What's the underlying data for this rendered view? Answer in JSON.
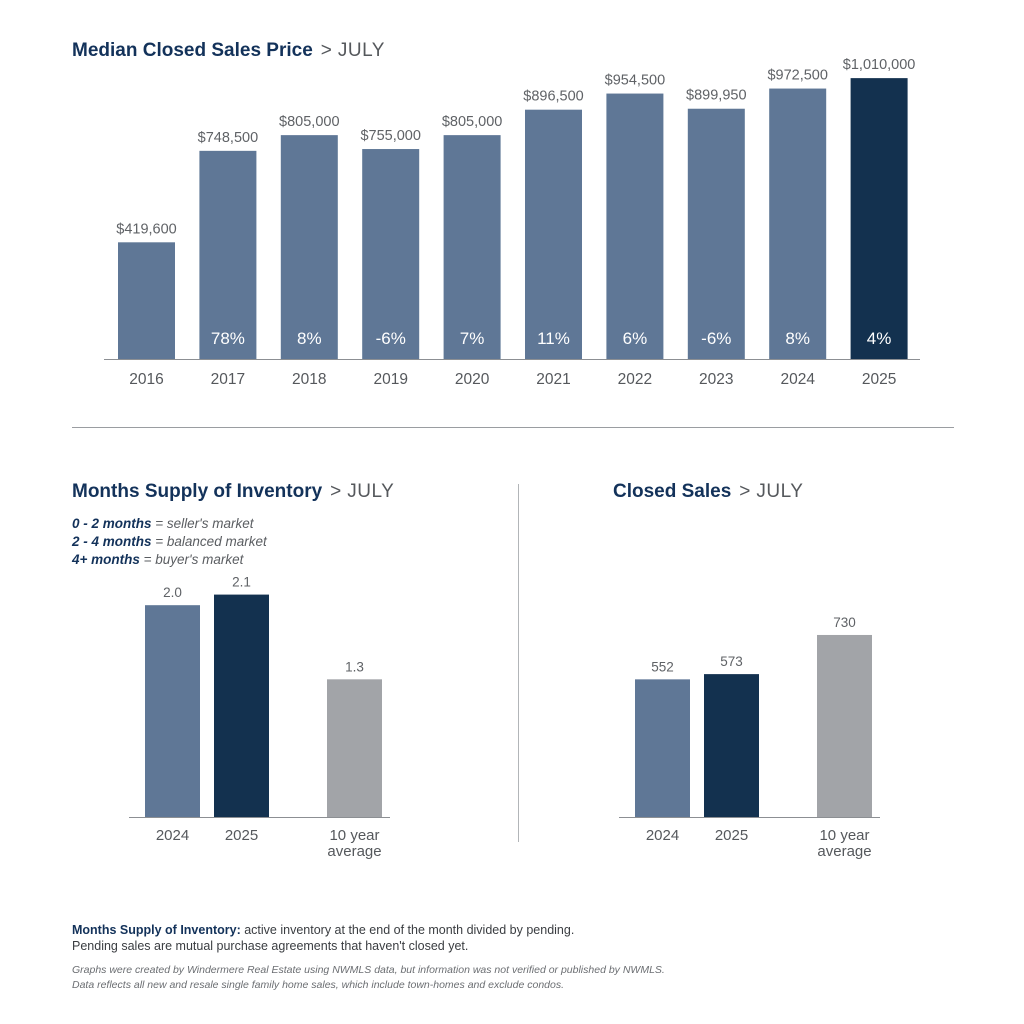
{
  "colors": {
    "bar": "#5f7796",
    "highlight": "#13314f",
    "average": "#a2a4a8",
    "axis": "#8c8f93",
    "title": "#13325a"
  },
  "sections": {
    "median": {
      "title": "Median Closed Sales Price",
      "separator": ">",
      "month": "JULY"
    },
    "supply": {
      "title": "Months Supply of Inventory",
      "separator": ">",
      "month": "JULY"
    },
    "closed": {
      "title": "Closed Sales",
      "separator": ">",
      "month": "JULY"
    }
  },
  "legend": [
    {
      "range": "0 - 2 months",
      "text": " = seller's market"
    },
    {
      "range": "2 - 4 months",
      "text": " = balanced market"
    },
    {
      "range": "4+ months",
      "text": " = buyer's market"
    }
  ],
  "footnote": {
    "term": "Months Supply of Inventory:",
    "line1": " active inventory at the end of the month divided by pending.",
    "line2": "Pending sales are mutual purchase agreements that haven't closed yet."
  },
  "disclaimer": {
    "line1": "Graphs were created by Windermere Real Estate using NWMLS data, but information was not verified or published by NWMLS.",
    "line2": "Data reflects all new and resale single family home sales, which include town-homes and exclude condos."
  },
  "chart_data": [
    {
      "type": "bar",
      "title": "Median Closed Sales Price",
      "categories": [
        "2016",
        "2017",
        "2018",
        "2019",
        "2020",
        "2021",
        "2022",
        "2023",
        "2024",
        "2025"
      ],
      "values": [
        419600,
        748500,
        805000,
        755000,
        805000,
        896500,
        954500,
        899950,
        972500,
        1010000
      ],
      "value_labels": [
        "$419,600",
        "$748,500",
        "$805,000",
        "$755,000",
        "$805,000",
        "$896,500",
        "$954,500",
        "$899,950",
        "$972,500",
        "$1,010,000"
      ],
      "change_labels": [
        "",
        "78%",
        "8%",
        "-6%",
        "7%",
        "11%",
        "6%",
        "-6%",
        "8%",
        "4%"
      ],
      "highlight_index": 9,
      "ylim": [
        0,
        1050000
      ],
      "grid": false
    },
    {
      "type": "bar",
      "title": "Months Supply of Inventory",
      "categories": [
        [
          "2024"
        ],
        [
          "2025"
        ],
        [
          "10 year",
          "average"
        ]
      ],
      "values": [
        2.0,
        2.1,
        1.3
      ],
      "value_labels": [
        "2.0",
        "2.1",
        "1.3"
      ],
      "bar_colors": [
        "bar",
        "highlight",
        "average"
      ],
      "ylim": [
        0,
        2.2
      ],
      "grid": false
    },
    {
      "type": "bar",
      "title": "Closed Sales",
      "categories": [
        [
          "2024"
        ],
        [
          "2025"
        ],
        [
          "10 year",
          "average"
        ]
      ],
      "values": [
        552,
        573,
        730
      ],
      "value_labels": [
        "552",
        "573",
        "730"
      ],
      "bar_colors": [
        "bar",
        "highlight",
        "average"
      ],
      "ylim": [
        0,
        786
      ],
      "grid": false
    }
  ]
}
